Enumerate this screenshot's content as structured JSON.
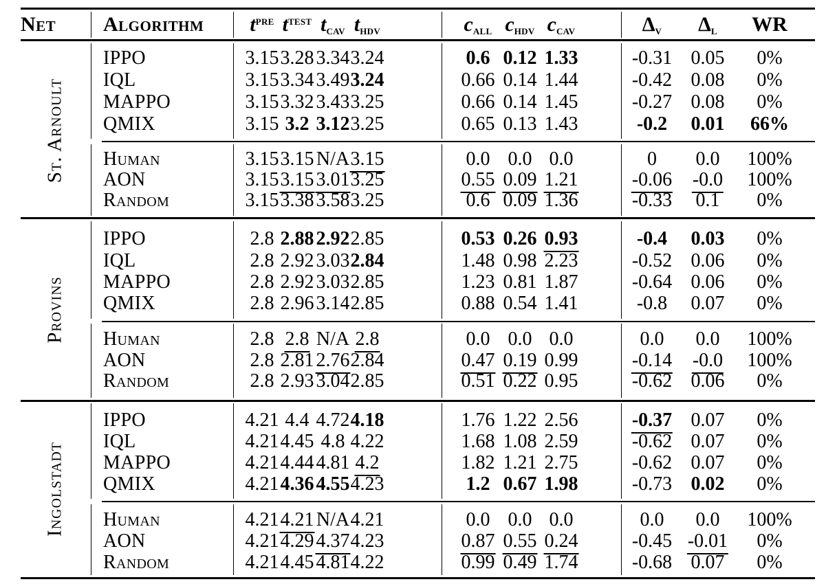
{
  "colors": {
    "text": "#000000",
    "background": "#ffffff",
    "rule": "#000000"
  },
  "header": {
    "net": "Net",
    "algorithm": "Algorithm",
    "metrics": [
      {
        "id": "t-pre",
        "base": "t",
        "script": "pre",
        "pos": "sup",
        "italic": true
      },
      {
        "id": "t-test",
        "base": "t",
        "script": "test",
        "pos": "sup",
        "italic": true
      },
      {
        "id": "t-cav",
        "base": "t",
        "script": "cav",
        "pos": "sub",
        "italic": true
      },
      {
        "id": "t-hdv",
        "base": "t",
        "script": "hdv",
        "pos": "sub",
        "italic": true
      },
      {
        "id": "c-all",
        "base": "c",
        "script": "all",
        "pos": "sub",
        "italic": true
      },
      {
        "id": "c-hdv",
        "base": "c",
        "script": "hdv",
        "pos": "sub",
        "italic": true
      },
      {
        "id": "c-cav",
        "base": "c",
        "script": "cav",
        "pos": "sub",
        "italic": true
      },
      {
        "id": "delta-v",
        "base": "Δ",
        "script": "v",
        "pos": "sub",
        "italic": false
      },
      {
        "id": "delta-l",
        "base": "Δ",
        "script": "l",
        "pos": "sub",
        "italic": false
      },
      {
        "id": "wr",
        "base": "WR",
        "script": "",
        "pos": "",
        "italic": false
      }
    ]
  },
  "blocks": [
    {
      "net": "St. Arnoult",
      "groups": [
        {
          "rows": [
            {
              "algorithm": "IPPO",
              "values": [
                "3.15",
                "3.28",
                "3.34",
                "3.24",
                "0.6",
                "0.12",
                "1.33",
                "-0.31",
                "0.05",
                "0%"
              ],
              "styles": [
                "",
                "",
                "",
                "",
                "b",
                "b",
                "b",
                "",
                "",
                ""
              ]
            },
            {
              "algorithm": "IQL",
              "values": [
                "3.15",
                "3.34",
                "3.49",
                "3.24",
                "0.66",
                "0.14",
                "1.44",
                "-0.42",
                "0.08",
                "0%"
              ],
              "styles": [
                "",
                "",
                "",
                "b",
                "",
                "",
                "",
                "",
                "",
                ""
              ]
            },
            {
              "algorithm": "MAPPO",
              "values": [
                "3.15",
                "3.32",
                "3.43",
                "3.25",
                "0.66",
                "0.14",
                "1.45",
                "-0.27",
                "0.08",
                "0%"
              ],
              "styles": [
                "",
                "",
                "",
                "",
                "",
                "",
                "",
                "",
                "",
                ""
              ]
            },
            {
              "algorithm": "QMIX",
              "values": [
                "3.15",
                "3.2",
                "3.12",
                "3.25",
                "0.65",
                "0.13",
                "1.43",
                "-0.2",
                "0.01",
                "66%"
              ],
              "styles": [
                "",
                "b",
                "b",
                "",
                "",
                "",
                "",
                "b",
                "b",
                "b"
              ]
            }
          ]
        },
        {
          "rows": [
            {
              "algorithm": "Human",
              "values": [
                "3.15",
                "3.15",
                "N/A",
                "3.15",
                "0.0",
                "0.0",
                "0.0",
                "0",
                "0.0",
                "100%"
              ],
              "styles": [
                "",
                "",
                "",
                "u",
                "",
                "",
                "",
                "",
                "",
                ""
              ]
            },
            {
              "algorithm": "AON",
              "values": [
                "3.15",
                "3.15",
                "3.01",
                "3.25",
                "0.55",
                "0.09",
                "1.21",
                "-0.06",
                "-0.0",
                "100%"
              ],
              "styles": [
                "",
                "u",
                "u",
                "",
                "u",
                "u",
                "u",
                "u",
                "u",
                ""
              ]
            },
            {
              "algorithm": "Random",
              "values": [
                "3.15",
                "3.38",
                "3.58",
                "3.25",
                "0.6",
                "0.09",
                "1.36",
                "-0.33",
                "0.1",
                "0%"
              ],
              "styles": [
                "",
                "",
                "",
                "",
                "",
                "",
                "",
                "",
                "",
                ""
              ]
            }
          ]
        }
      ]
    },
    {
      "net": "Provins",
      "groups": [
        {
          "rows": [
            {
              "algorithm": "IPPO",
              "values": [
                "2.8",
                "2.88",
                "2.92",
                "2.85",
                "0.53",
                "0.26",
                "0.93",
                "-0.4",
                "0.03",
                "0%"
              ],
              "styles": [
                "",
                "b",
                "b",
                "",
                "b",
                "b",
                "bu",
                "b",
                "b",
                ""
              ]
            },
            {
              "algorithm": "IQL",
              "values": [
                "2.8",
                "2.92",
                "3.03",
                "2.84",
                "1.48",
                "0.98",
                "2.23",
                "-0.52",
                "0.06",
                "0%"
              ],
              "styles": [
                "",
                "",
                "",
                "b",
                "",
                "",
                "",
                "",
                "",
                ""
              ]
            },
            {
              "algorithm": "MAPPO",
              "values": [
                "2.8",
                "2.92",
                "3.03",
                "2.85",
                "1.23",
                "0.81",
                "1.87",
                "-0.64",
                "0.06",
                "0%"
              ],
              "styles": [
                "",
                "",
                "",
                "",
                "",
                "",
                "",
                "",
                "",
                ""
              ]
            },
            {
              "algorithm": "QMIX",
              "values": [
                "2.8",
                "2.96",
                "3.14",
                "2.85",
                "0.88",
                "0.54",
                "1.41",
                "-0.8",
                "0.07",
                "0%"
              ],
              "styles": [
                "",
                "",
                "",
                "",
                "",
                "",
                "",
                "",
                "",
                ""
              ]
            }
          ]
        },
        {
          "rows": [
            {
              "algorithm": "Human",
              "values": [
                "2.8",
                "2.8",
                "N/A",
                "2.8",
                "0.0",
                "0.0",
                "0.0",
                "0.0",
                "0.0",
                "100%"
              ],
              "styles": [
                "",
                "u",
                "",
                "u",
                "",
                "",
                "",
                "",
                "",
                ""
              ]
            },
            {
              "algorithm": "AON",
              "values": [
                "2.8",
                "2.81",
                "2.76",
                "2.84",
                "0.47",
                "0.19",
                "0.99",
                "-0.14",
                "-0.0",
                "100%"
              ],
              "styles": [
                "",
                "",
                "u",
                "",
                "u",
                "u",
                "",
                "u",
                "u",
                ""
              ]
            },
            {
              "algorithm": "Random",
              "values": [
                "2.8",
                "2.93",
                "3.04",
                "2.85",
                "0.51",
                "0.22",
                "0.95",
                "-0.62",
                "0.06",
                "0%"
              ],
              "styles": [
                "",
                "",
                "",
                "",
                "",
                "",
                "",
                "",
                "",
                ""
              ]
            }
          ]
        }
      ]
    },
    {
      "net": "Ingolstadt",
      "groups": [
        {
          "rows": [
            {
              "algorithm": "IPPO",
              "values": [
                "4.21",
                "4.4",
                "4.72",
                "4.18",
                "1.76",
                "1.22",
                "2.56",
                "-0.37",
                "0.07",
                "0%"
              ],
              "styles": [
                "",
                "",
                "",
                "b",
                "",
                "",
                "",
                "bu",
                "",
                ""
              ]
            },
            {
              "algorithm": "IQL",
              "values": [
                "4.21",
                "4.45",
                "4.8",
                "4.22",
                "1.68",
                "1.08",
                "2.59",
                "-0.62",
                "0.07",
                "0%"
              ],
              "styles": [
                "",
                "",
                "",
                "",
                "",
                "",
                "",
                "",
                "",
                ""
              ]
            },
            {
              "algorithm": "MAPPO",
              "values": [
                "4.21",
                "4.44",
                "4.81",
                "4.2",
                "1.82",
                "1.21",
                "2.75",
                "-0.62",
                "0.07",
                "0%"
              ],
              "styles": [
                "",
                "",
                "",
                "u",
                "",
                "",
                "",
                "",
                "",
                ""
              ]
            },
            {
              "algorithm": "QMIX",
              "values": [
                "4.21",
                "4.36",
                "4.55",
                "4.23",
                "1.2",
                "0.67",
                "1.98",
                "-0.73",
                "0.02",
                "0%"
              ],
              "styles": [
                "",
                "b",
                "b",
                "",
                "b",
                "b",
                "b",
                "",
                "b",
                ""
              ]
            }
          ]
        },
        {
          "rows": [
            {
              "algorithm": "Human",
              "values": [
                "4.21",
                "4.21",
                "N/A",
                "4.21",
                "0.0",
                "0.0",
                "0.0",
                "0.0",
                "0.0",
                "100%"
              ],
              "styles": [
                "",
                "u",
                "",
                "",
                "",
                "",
                "",
                "",
                "",
                ""
              ]
            },
            {
              "algorithm": "AON",
              "values": [
                "4.21",
                "4.29",
                "4.37",
                "4.23",
                "0.87",
                "0.55",
                "0.24",
                "-0.45",
                "-0.01",
                "0%"
              ],
              "styles": [
                "",
                "",
                "u",
                "",
                "u",
                "u",
                "u",
                "",
                "u",
                ""
              ]
            },
            {
              "algorithm": "Random",
              "values": [
                "4.21",
                "4.45",
                "4.81",
                "4.22",
                "0.99",
                "0.49",
                "1.74",
                "-0.68",
                "0.07",
                "0%"
              ],
              "styles": [
                "",
                "",
                "",
                "",
                "",
                "",
                "",
                "",
                "",
                ""
              ]
            }
          ]
        }
      ]
    }
  ]
}
